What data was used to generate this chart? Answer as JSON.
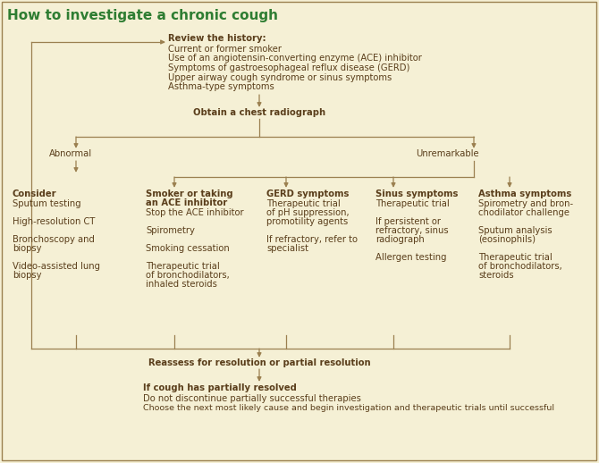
{
  "title": "How to investigate a chronic cough",
  "title_color": "#2e7d32",
  "background_color": "#f5f0d5",
  "text_color": "#5a3e1b",
  "arrow_color": "#9b8050",
  "figsize": [
    6.7,
    5.18
  ],
  "dpi": 100,
  "history_bold": "Review the history:",
  "history_lines": [
    "Current or former smoker",
    "Use of an angiotensin-converting enzyme (ACE) inhibitor",
    "Symptoms of gastroesophageal reflux disease (GERD)",
    "Upper airway cough syndrome or sinus symptoms",
    "Asthma-type symptoms"
  ],
  "radiograph": "Obtain a chest radiograph",
  "abnormal": "Abnormal",
  "unremarkable": "Unremarkable",
  "col1_bold": "Consider",
  "col1_items": [
    "Sputum testing",
    "",
    "High-resolution CT",
    "",
    "Bronchoscopy and",
    "biopsy",
    "",
    "Video-assisted lung",
    "biopsy"
  ],
  "col2_bold1": "Smoker or taking",
  "col2_bold2": "an ACE inhibitor",
  "col2_items": [
    "Stop the ACE inhibitor",
    "",
    "Spirometry",
    "",
    "Smoking cessation",
    "",
    "Therapeutic trial",
    "of bronchodilators,",
    "inhaled steroids"
  ],
  "col3_bold": "GERD symptoms",
  "col3_items": [
    "Therapeutic trial",
    "of pH suppression,",
    "promotility agents",
    "",
    "If refractory, refer to",
    "specialist"
  ],
  "col4_bold": "Sinus symptoms",
  "col4_items": [
    "Therapeutic trial",
    "",
    "If persistent or",
    "refractory, sinus",
    "radiograph",
    "",
    "Allergen testing"
  ],
  "col5_bold": "Asthma symptoms",
  "col5_items": [
    "Spirometry and bron-",
    "chodilator challenge",
    "",
    "Sputum analysis",
    "(eosinophils)",
    "",
    "Therapeutic trial",
    "of bronchodilators,",
    "steroids"
  ],
  "reassess": "Reassess for resolution or partial resolution",
  "partial_bold": "If cough has partially resolved",
  "partial1": "Do not discontinue partially successful therapies",
  "partial2": "Choose the next most likely cause and begin investigation and therapeutic trials until successful"
}
